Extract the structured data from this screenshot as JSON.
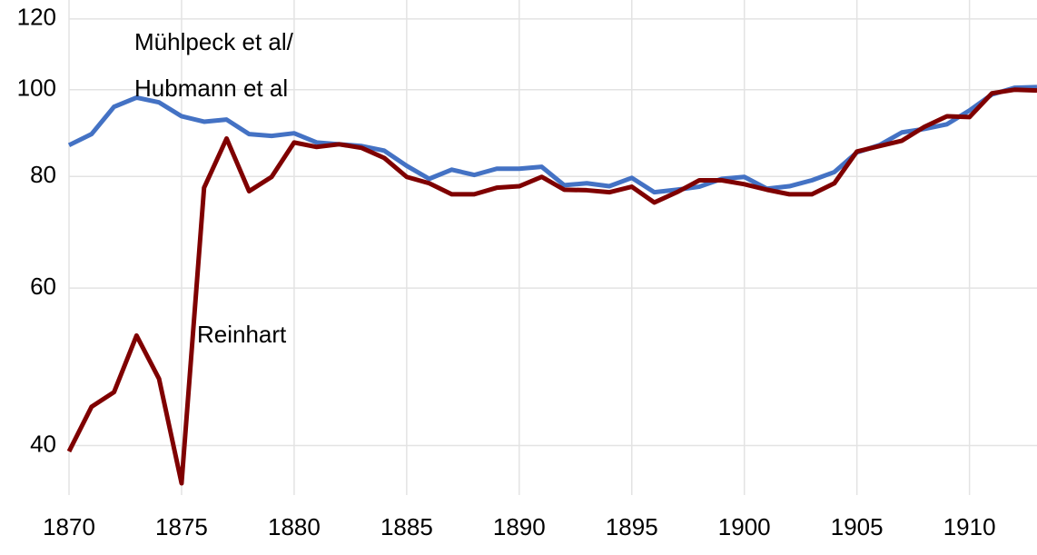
{
  "chart_data": {
    "type": "line",
    "log_scale_y": true,
    "grid": true,
    "xlim": [
      1870,
      1913
    ],
    "ylim": [
      34,
      126
    ],
    "xticks": [
      1870,
      1875,
      1880,
      1885,
      1890,
      1895,
      1900,
      1905,
      1910
    ],
    "yticks": [
      40,
      60,
      80,
      100,
      120
    ],
    "x": [
      1870,
      1871,
      1872,
      1873,
      1874,
      1875,
      1876,
      1877,
      1878,
      1879,
      1880,
      1881,
      1882,
      1883,
      1884,
      1885,
      1886,
      1887,
      1888,
      1889,
      1890,
      1891,
      1892,
      1893,
      1894,
      1895,
      1896,
      1897,
      1898,
      1899,
      1900,
      1901,
      1902,
      1903,
      1904,
      1905,
      1906,
      1907,
      1908,
      1909,
      1910,
      1911,
      1912,
      1913
    ],
    "series": [
      {
        "color": "#4472c4",
        "values": [
          86.7,
          89.2,
          95.7,
          98,
          96.8,
          93.4,
          92.1,
          92.6,
          89.2,
          88.8,
          89.4,
          87.3,
          86.9,
          86.5,
          85.5,
          82.2,
          79.5,
          81.4,
          80.3,
          81.6,
          81.6,
          82,
          78.2,
          78.6,
          78,
          79.7,
          76.8,
          77.3,
          77.9,
          79.5,
          79.9,
          77.5,
          78,
          79.2,
          80.9,
          85.1,
          86.7,
          89.6,
          90.4,
          91.5,
          94.8,
          98.8,
          100.5,
          100.7
        ]
      },
      {
        "color": "#7f0000",
        "values": [
          39.4,
          44.2,
          45.9,
          53.1,
          47.5,
          36.3,
          77.7,
          88.2,
          77,
          79.9,
          87.3,
          86.3,
          86.9,
          86.1,
          83.9,
          79.9,
          78.6,
          76.4,
          76.4,
          77.7,
          78,
          79.9,
          77.3,
          77.2,
          76.8,
          77.9,
          74.8,
          76.8,
          79.2,
          79.2,
          78.4,
          77.3,
          76.4,
          76.4,
          78.6,
          85.3,
          86.5,
          87.7,
          90.9,
          93.4,
          93.2,
          99.1,
          100,
          99.8
        ]
      }
    ],
    "annotations": [
      "Mühlpeck et al/",
      "Hubmann et al",
      "Reinhart"
    ]
  }
}
